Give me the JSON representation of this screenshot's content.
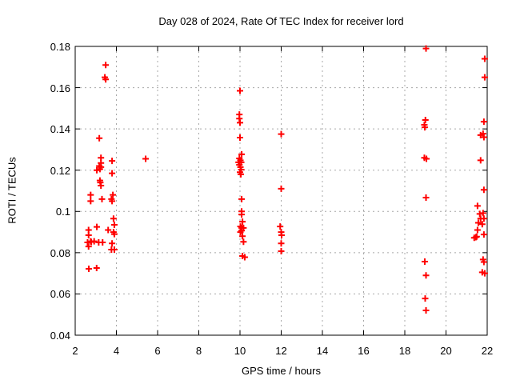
{
  "title": "Day 028 of 2024, Rate Of TEC Index for receiver lord",
  "colors": {
    "marker": "#ff0000",
    "grid": "#a8a8a8",
    "axis": "#000000",
    "background": "#ffffff"
  },
  "chart_data": {
    "type": "scatter",
    "title": "Day 028 of 2024, Rate Of TEC Index for receiver lord",
    "xlabel": "GPS time / hours",
    "ylabel": "ROTI / TECUs",
    "xlim": [
      2,
      22
    ],
    "ylim": [
      0.04,
      0.18
    ],
    "xtick_labels": [
      "2",
      "4",
      "6",
      "8",
      "10",
      "12",
      "14",
      "16",
      "18",
      "20",
      "22"
    ],
    "xtick_values": [
      2,
      4,
      6,
      8,
      10,
      12,
      14,
      16,
      18,
      20,
      22
    ],
    "ytick_labels": [
      "0.04",
      "0.06",
      "0.08",
      "0.1",
      "0.12",
      "0.14",
      "0.16",
      "0.18"
    ],
    "ytick_values": [
      0.04,
      0.06,
      0.08,
      0.1,
      0.12,
      0.14,
      0.16,
      0.18
    ],
    "grid": true,
    "legend": "none",
    "marker": "plus",
    "series": [
      {
        "name": "ROTI",
        "points": [
          [
            3.48,
            0.171
          ],
          [
            3.44,
            0.165
          ],
          [
            3.48,
            0.164
          ],
          [
            3.17,
            0.1355
          ],
          [
            3.25,
            0.126
          ],
          [
            3.79,
            0.1245
          ],
          [
            3.25,
            0.1235
          ],
          [
            3.17,
            0.122
          ],
          [
            3.25,
            0.1215
          ],
          [
            3.2,
            0.1205
          ],
          [
            3.05,
            0.12
          ],
          [
            3.79,
            0.1185
          ],
          [
            3.2,
            0.115
          ],
          [
            3.22,
            0.114
          ],
          [
            3.25,
            0.1125
          ],
          [
            3.83,
            0.108
          ],
          [
            2.75,
            0.108
          ],
          [
            2.75,
            0.105
          ],
          [
            3.3,
            0.106
          ],
          [
            3.76,
            0.106
          ],
          [
            3.79,
            0.105
          ],
          [
            3.86,
            0.0965
          ],
          [
            3.9,
            0.0935
          ],
          [
            3.05,
            0.0925
          ],
          [
            2.65,
            0.091
          ],
          [
            3.6,
            0.091
          ],
          [
            3.86,
            0.09
          ],
          [
            3.9,
            0.089
          ],
          [
            2.65,
            0.0885
          ],
          [
            2.75,
            0.0855
          ],
          [
            2.78,
            0.0852
          ],
          [
            2.6,
            0.085
          ],
          [
            2.92,
            0.0855
          ],
          [
            3.14,
            0.085
          ],
          [
            3.33,
            0.085
          ],
          [
            2.65,
            0.083
          ],
          [
            3.79,
            0.0845
          ],
          [
            3.76,
            0.0815
          ],
          [
            3.9,
            0.0815
          ],
          [
            2.66,
            0.0722
          ],
          [
            3.04,
            0.0726
          ],
          [
            5.42,
            0.1255
          ],
          [
            10.0,
            0.1585
          ],
          [
            9.97,
            0.147
          ],
          [
            9.97,
            0.145
          ],
          [
            10.0,
            0.143
          ],
          [
            10.0,
            0.1358
          ],
          [
            10.08,
            0.1277
          ],
          [
            9.97,
            0.1257
          ],
          [
            10.02,
            0.1248
          ],
          [
            9.93,
            0.1238
          ],
          [
            10.06,
            0.1238
          ],
          [
            9.97,
            0.1226
          ],
          [
            10.02,
            0.1215
          ],
          [
            10.06,
            0.1203
          ],
          [
            10.0,
            0.119
          ],
          [
            10.04,
            0.118
          ],
          [
            10.08,
            0.106
          ],
          [
            10.08,
            0.1
          ],
          [
            10.08,
            0.0985
          ],
          [
            10.12,
            0.095
          ],
          [
            10.02,
            0.0927
          ],
          [
            10.08,
            0.092
          ],
          [
            10.17,
            0.092
          ],
          [
            10.08,
            0.0907
          ],
          [
            10.02,
            0.09
          ],
          [
            10.12,
            0.088
          ],
          [
            10.17,
            0.0853
          ],
          [
            10.12,
            0.0784
          ],
          [
            10.23,
            0.0778
          ],
          [
            12.0,
            0.1375
          ],
          [
            12.0,
            0.111
          ],
          [
            11.95,
            0.0927
          ],
          [
            12.0,
            0.09
          ],
          [
            12.02,
            0.0885
          ],
          [
            12.0,
            0.0845
          ],
          [
            12.0,
            0.0807
          ],
          [
            19.03,
            0.179
          ],
          [
            19.0,
            0.1443
          ],
          [
            18.95,
            0.142
          ],
          [
            18.97,
            0.1408
          ],
          [
            18.95,
            0.126
          ],
          [
            19.05,
            0.1255
          ],
          [
            19.03,
            0.1067
          ],
          [
            18.97,
            0.0757
          ],
          [
            19.03,
            0.069
          ],
          [
            18.99,
            0.0578
          ],
          [
            19.03,
            0.052
          ],
          [
            21.88,
            0.174
          ],
          [
            21.88,
            0.165
          ],
          [
            21.84,
            0.1435
          ],
          [
            21.8,
            0.1377
          ],
          [
            21.68,
            0.137
          ],
          [
            21.84,
            0.136
          ],
          [
            21.68,
            0.1248
          ],
          [
            21.84,
            0.1105
          ],
          [
            21.53,
            0.1027
          ],
          [
            21.8,
            0.0992
          ],
          [
            21.64,
            0.0988
          ],
          [
            21.68,
            0.0965
          ],
          [
            21.84,
            0.0965
          ],
          [
            21.57,
            0.0945
          ],
          [
            21.76,
            0.0938
          ],
          [
            21.53,
            0.091
          ],
          [
            21.84,
            0.0888
          ],
          [
            21.49,
            0.0878
          ],
          [
            21.45,
            0.0875
          ],
          [
            21.37,
            0.0872
          ],
          [
            21.8,
            0.0767
          ],
          [
            21.84,
            0.0755
          ],
          [
            21.76,
            0.0705
          ],
          [
            21.88,
            0.07
          ]
        ]
      }
    ]
  }
}
